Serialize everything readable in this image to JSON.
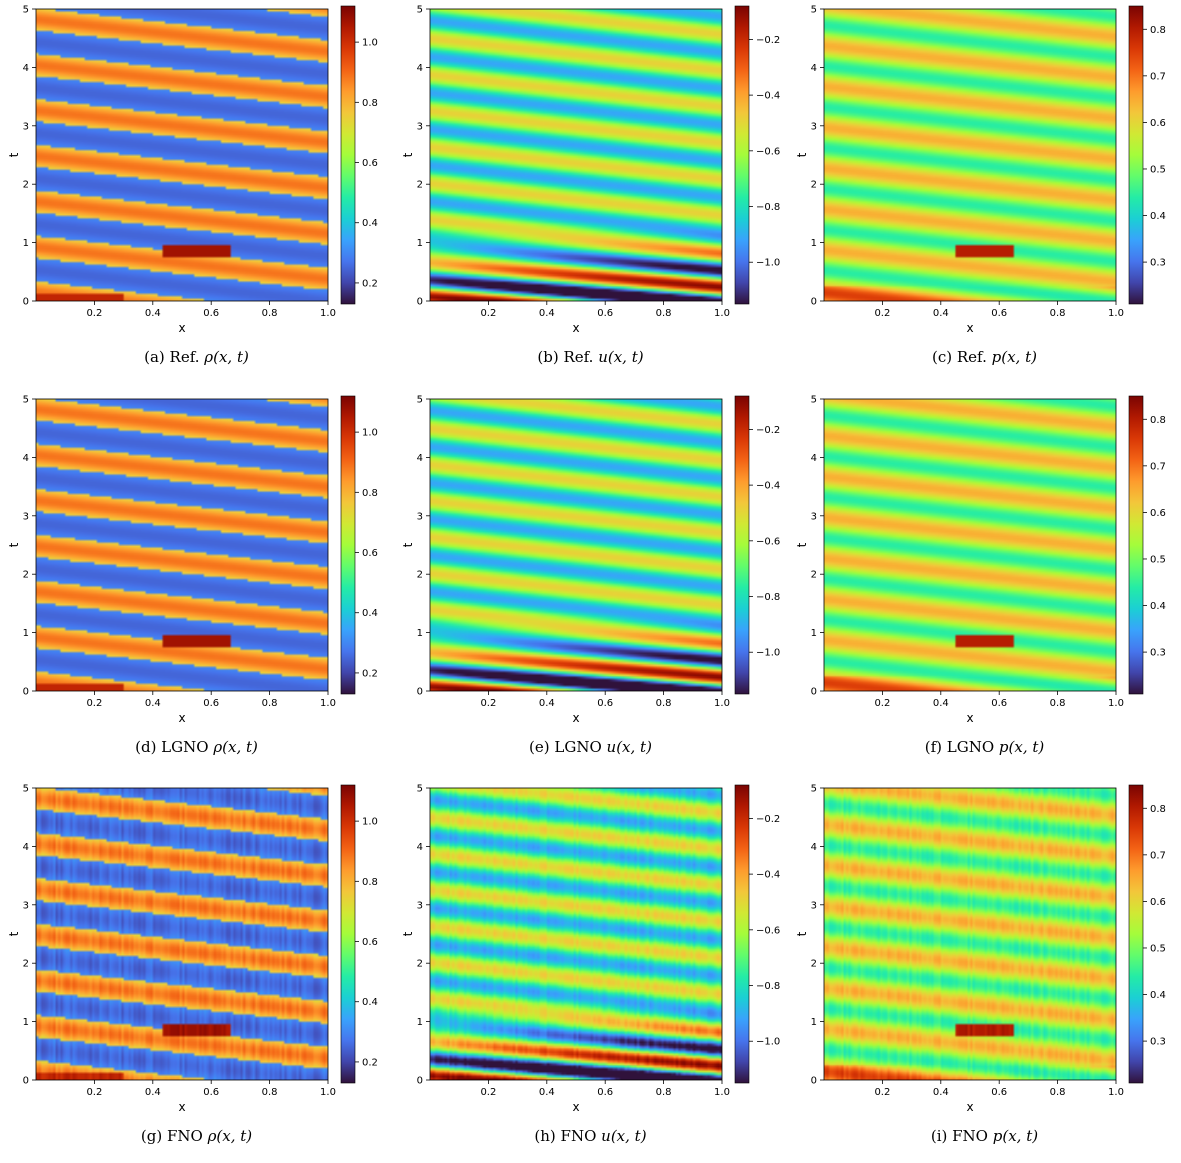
{
  "colormap": [
    "#30123b",
    "#4145ab",
    "#4675ed",
    "#39a2fc",
    "#1bcfd4",
    "#24eca6",
    "#61fc6c",
    "#a4fc3b",
    "#d1e834",
    "#f3c63a",
    "#fe9b2d",
    "#f36315",
    "#d93806",
    "#b11901",
    "#7a0402"
  ],
  "chart_data": [
    {
      "id": "a",
      "type": "heatmap",
      "field": "rho",
      "caption_prefix": "(a) Ref.",
      "caption_math": "ρ(x, t)",
      "xlabel": "x",
      "ylabel": "t",
      "xlim": [
        0,
        1
      ],
      "ylim": [
        0,
        5
      ],
      "xticks": [
        "0.2",
        "0.4",
        "0.6",
        "0.8",
        "1.0"
      ],
      "yticks": [
        "0",
        "1",
        "2",
        "3",
        "4",
        "5"
      ],
      "clim": [
        0.13,
        1.12
      ],
      "cticks": [
        "0.2",
        "0.4",
        "0.6",
        "0.8",
        "1.0"
      ],
      "variant": "ref"
    },
    {
      "id": "b",
      "type": "heatmap",
      "field": "u",
      "caption_prefix": "(b) Ref.",
      "caption_math": "u(x, t)",
      "xlabel": "x",
      "ylabel": "t",
      "xlim": [
        0,
        1
      ],
      "ylim": [
        0,
        5
      ],
      "xticks": [
        "0.2",
        "0.4",
        "0.6",
        "0.8",
        "1.0"
      ],
      "yticks": [
        "0",
        "1",
        "2",
        "3",
        "4",
        "5"
      ],
      "clim": [
        -1.15,
        -0.08
      ],
      "cticks": [
        "−0.2",
        "−0.4",
        "−0.6",
        "−0.8",
        "−1.0"
      ],
      "variant": "ref"
    },
    {
      "id": "c",
      "type": "heatmap",
      "field": "p",
      "caption_prefix": "(c) Ref.",
      "caption_math": "p(x, t)",
      "xlabel": "x",
      "ylabel": "t",
      "xlim": [
        0,
        1
      ],
      "ylim": [
        0,
        5
      ],
      "xticks": [
        "0.2",
        "0.4",
        "0.6",
        "0.8",
        "1.0"
      ],
      "yticks": [
        "0",
        "1",
        "2",
        "3",
        "4",
        "5"
      ],
      "clim": [
        0.21,
        0.85
      ],
      "cticks": [
        "0.3",
        "0.4",
        "0.5",
        "0.6",
        "0.7",
        "0.8"
      ],
      "variant": "ref"
    },
    {
      "id": "d",
      "type": "heatmap",
      "field": "rho",
      "caption_prefix": "(d) LGNO",
      "caption_math": "ρ(x, t)",
      "xlabel": "x",
      "ylabel": "t",
      "xlim": [
        0,
        1
      ],
      "ylim": [
        0,
        5
      ],
      "xticks": [
        "0.2",
        "0.4",
        "0.6",
        "0.8",
        "1.0"
      ],
      "yticks": [
        "0",
        "1",
        "2",
        "3",
        "4",
        "5"
      ],
      "clim": [
        0.13,
        1.12
      ],
      "cticks": [
        "0.2",
        "0.4",
        "0.6",
        "0.8",
        "1.0"
      ],
      "variant": "lgno"
    },
    {
      "id": "e",
      "type": "heatmap",
      "field": "u",
      "caption_prefix": "(e) LGNO",
      "caption_math": "u(x, t)",
      "xlabel": "x",
      "ylabel": "t",
      "xlim": [
        0,
        1
      ],
      "ylim": [
        0,
        5
      ],
      "xticks": [
        "0.2",
        "0.4",
        "0.6",
        "0.8",
        "1.0"
      ],
      "yticks": [
        "0",
        "1",
        "2",
        "3",
        "4",
        "5"
      ],
      "clim": [
        -1.15,
        -0.08
      ],
      "cticks": [
        "−0.2",
        "−0.4",
        "−0.6",
        "−0.8",
        "−1.0"
      ],
      "variant": "lgno"
    },
    {
      "id": "f",
      "type": "heatmap",
      "field": "p",
      "caption_prefix": "(f) LGNO",
      "caption_math": "p(x, t)",
      "xlabel": "x",
      "ylabel": "t",
      "xlim": [
        0,
        1
      ],
      "ylim": [
        0,
        5
      ],
      "xticks": [
        "0.2",
        "0.4",
        "0.6",
        "0.8",
        "1.0"
      ],
      "yticks": [
        "0",
        "1",
        "2",
        "3",
        "4",
        "5"
      ],
      "clim": [
        0.21,
        0.85
      ],
      "cticks": [
        "0.3",
        "0.4",
        "0.5",
        "0.6",
        "0.7",
        "0.8"
      ],
      "variant": "lgno"
    },
    {
      "id": "g",
      "type": "heatmap",
      "field": "rho",
      "caption_prefix": "(g) FNO",
      "caption_math": "ρ(x, t)",
      "xlabel": "x",
      "ylabel": "t",
      "xlim": [
        0,
        1
      ],
      "ylim": [
        0,
        5
      ],
      "xticks": [
        "0.2",
        "0.4",
        "0.6",
        "0.8",
        "1.0"
      ],
      "yticks": [
        "0",
        "1",
        "2",
        "3",
        "4",
        "5"
      ],
      "clim": [
        0.13,
        1.12
      ],
      "cticks": [
        "0.2",
        "0.4",
        "0.6",
        "0.8",
        "1.0"
      ],
      "variant": "fno"
    },
    {
      "id": "h",
      "type": "heatmap",
      "field": "u",
      "caption_prefix": "(h) FNO",
      "caption_math": "u(x, t)",
      "xlabel": "x",
      "ylabel": "t",
      "xlim": [
        0,
        1
      ],
      "ylim": [
        0,
        5
      ],
      "xticks": [
        "0.2",
        "0.4",
        "0.6",
        "0.8",
        "1.0"
      ],
      "yticks": [
        "0",
        "1",
        "2",
        "3",
        "4",
        "5"
      ],
      "clim": [
        -1.15,
        -0.08
      ],
      "cticks": [
        "−0.2",
        "−0.4",
        "−0.6",
        "−0.8",
        "−1.0"
      ],
      "variant": "fno"
    },
    {
      "id": "i",
      "type": "heatmap",
      "field": "p",
      "caption_prefix": "(i) FNO",
      "caption_math": "p(x, t)",
      "xlabel": "x",
      "ylabel": "t",
      "xlim": [
        0,
        1
      ],
      "ylim": [
        0,
        5
      ],
      "xticks": [
        "0.2",
        "0.4",
        "0.6",
        "0.8",
        "1.0"
      ],
      "yticks": [
        "0",
        "1",
        "2",
        "3",
        "4",
        "5"
      ],
      "clim": [
        0.21,
        0.85
      ],
      "cticks": [
        "0.3",
        "0.4",
        "0.5",
        "0.6",
        "0.7",
        "0.8"
      ],
      "variant": "fno"
    }
  ]
}
